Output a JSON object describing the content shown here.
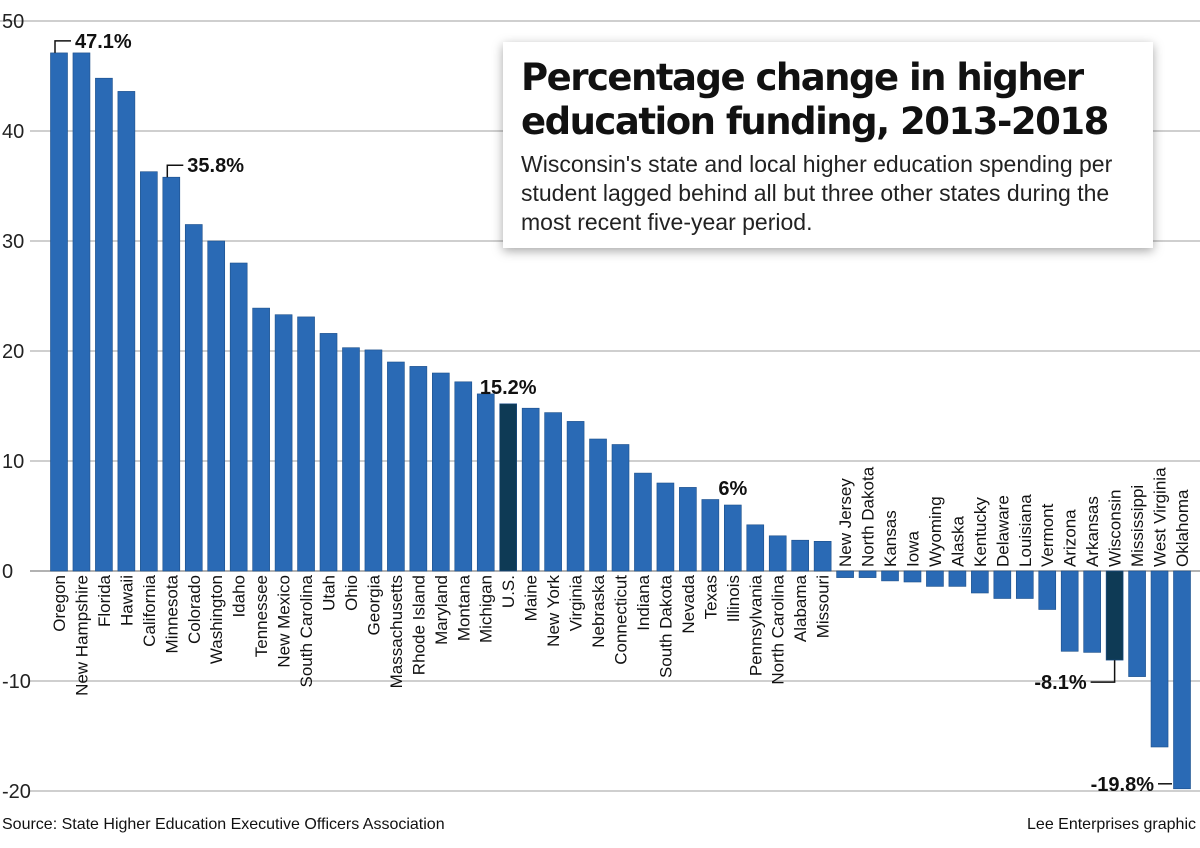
{
  "header": {
    "title": "Percentage change in higher education funding, 2013-2018",
    "subtitle": "Wisconsin's state and local higher education spending per student lagged behind all but three other states during the most recent five-year period."
  },
  "footer": {
    "source": "Source: State Higher Education Executive Officers Association",
    "credit": "Lee Enterprises graphic"
  },
  "chart_data": {
    "type": "bar",
    "title": "Percentage change in higher education funding, 2013-2018",
    "ylim": [
      -20,
      50
    ],
    "yticks": [
      -20,
      -10,
      0,
      10,
      20,
      30,
      40,
      50
    ],
    "grid": true,
    "colors": {
      "bar": "#2a6ab5",
      "highlight": "#0e3a55",
      "grid": "#bfbfbf"
    },
    "categories": [
      "Oregon",
      "New Hampshire",
      "Florida",
      "Hawaii",
      "California",
      "Minnesota",
      "Colorado",
      "Washington",
      "Idaho",
      "Tennessee",
      "New Mexico",
      "South Carolina",
      "Utah",
      "Ohio",
      "Georgia",
      "Massachusetts",
      "Rhode Island",
      "Maryland",
      "Montana",
      "Michigan",
      "U.S.",
      "Maine",
      "New York",
      "Virginia",
      "Nebraska",
      "Connecticut",
      "Indiana",
      "South Dakota",
      "Nevada",
      "Texas",
      "Illinois",
      "Pennsylvania",
      "North Carolina",
      "Alabama",
      "Missouri",
      "New Jersey",
      "North Dakota",
      "Kansas",
      "Iowa",
      "Wyoming",
      "Alaska",
      "Kentucky",
      "Delaware",
      "Louisiana",
      "Vermont",
      "Arizona",
      "Arkansas",
      "Wisconsin",
      "Mississippi",
      "West Virginia",
      "Oklahoma"
    ],
    "values": [
      47.1,
      47.1,
      44.8,
      43.6,
      36.3,
      35.8,
      31.5,
      30.0,
      28.0,
      23.9,
      23.3,
      23.1,
      21.6,
      20.3,
      20.1,
      19.0,
      18.6,
      18.0,
      17.2,
      16.1,
      15.2,
      14.8,
      14.4,
      13.6,
      12.0,
      11.5,
      8.9,
      8.0,
      7.6,
      6.5,
      6.0,
      4.2,
      3.2,
      2.8,
      2.7,
      -0.6,
      -0.6,
      -0.9,
      -1.0,
      -1.4,
      -1.4,
      -2.0,
      -2.5,
      -2.5,
      -3.5,
      -7.3,
      -7.4,
      -8.1,
      -9.6,
      -16.0,
      -19.8
    ],
    "highlighted": [
      "U.S.",
      "Wisconsin"
    ],
    "annotations": [
      {
        "category": "Oregon",
        "text": "47.1%"
      },
      {
        "category": "Minnesota",
        "text": "35.8%"
      },
      {
        "category": "U.S.",
        "text": "15.2%"
      },
      {
        "category": "Illinois",
        "text": "6%"
      },
      {
        "category": "Wisconsin",
        "text": "-8.1%"
      },
      {
        "category": "Oklahoma",
        "text": "-19.8%"
      }
    ]
  }
}
